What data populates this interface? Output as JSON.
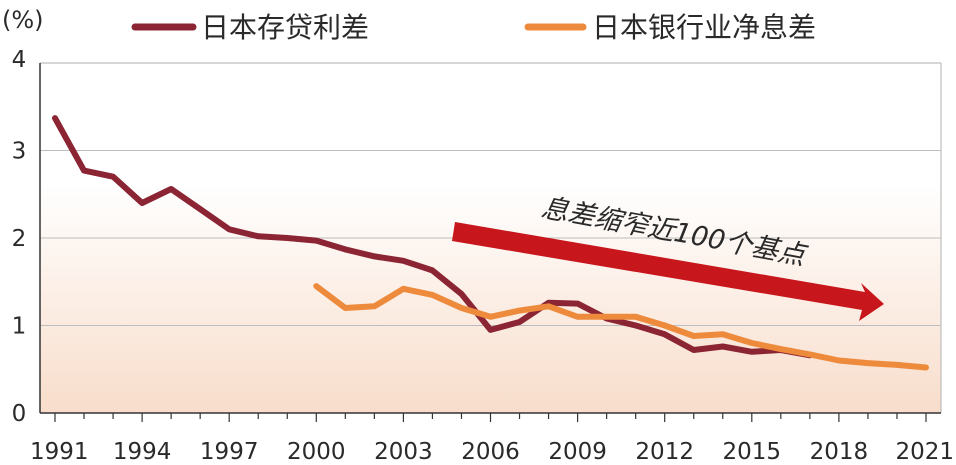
{
  "chart_data": {
    "type": "line",
    "title": "",
    "ylabel": "(%)",
    "xlabel": "",
    "xlim": [
      1991,
      2021
    ],
    "ylim": [
      0,
      4
    ],
    "x_ticks": [
      1991,
      1994,
      1997,
      2000,
      2003,
      2006,
      2009,
      2012,
      2015,
      2018,
      2021
    ],
    "x_tick_labels": [
      "1991",
      "1994",
      "1997",
      "2000",
      "2003",
      "2006",
      "2009",
      "2012",
      "2015",
      "2018",
      "2021"
    ],
    "y_ticks": [
      0,
      1,
      2,
      3,
      4
    ],
    "y_tick_labels": [
      "0",
      "1",
      "2",
      "3",
      "4"
    ],
    "grid": true,
    "legend_position": "top",
    "series": [
      {
        "name": "日本存贷利差",
        "color": "#8b2433",
        "x": [
          1991,
          1992,
          1993,
          1994,
          1995,
          1996,
          1997,
          1998,
          1999,
          2000,
          2001,
          2002,
          2003,
          2004,
          2005,
          2006,
          2007,
          2008,
          2009,
          2010,
          2011,
          2012,
          2013,
          2014,
          2015,
          2016,
          2017
        ],
        "values": [
          3.37,
          2.77,
          2.7,
          2.4,
          2.56,
          2.33,
          2.1,
          2.02,
          2.0,
          1.97,
          1.87,
          1.79,
          1.74,
          1.63,
          1.36,
          0.95,
          1.04,
          1.26,
          1.25,
          1.08,
          1.0,
          0.9,
          0.72,
          0.76,
          0.7,
          0.72,
          0.66
        ]
      },
      {
        "name": "日本银行业净息差",
        "color": "#ee8a3c",
        "x": [
          2000,
          2001,
          2002,
          2003,
          2004,
          2005,
          2006,
          2007,
          2008,
          2009,
          2010,
          2011,
          2012,
          2013,
          2014,
          2015,
          2016,
          2017,
          2018,
          2019,
          2020,
          2021
        ],
        "values": [
          1.45,
          1.2,
          1.22,
          1.42,
          1.35,
          1.2,
          1.1,
          1.17,
          1.22,
          1.1,
          1.1,
          1.1,
          1.0,
          0.88,
          0.9,
          0.8,
          0.73,
          0.67,
          0.6,
          0.57,
          0.55,
          0.52
        ]
      }
    ],
    "annotation": {
      "text": "息差缩窄近100个基点",
      "arrow_color": "#c8161d"
    },
    "colors": {
      "plot_background_top": "#ffffff",
      "plot_background_bottom": "#f8ddcb",
      "grid": "#bdbdbd",
      "axis": "#333333"
    }
  }
}
